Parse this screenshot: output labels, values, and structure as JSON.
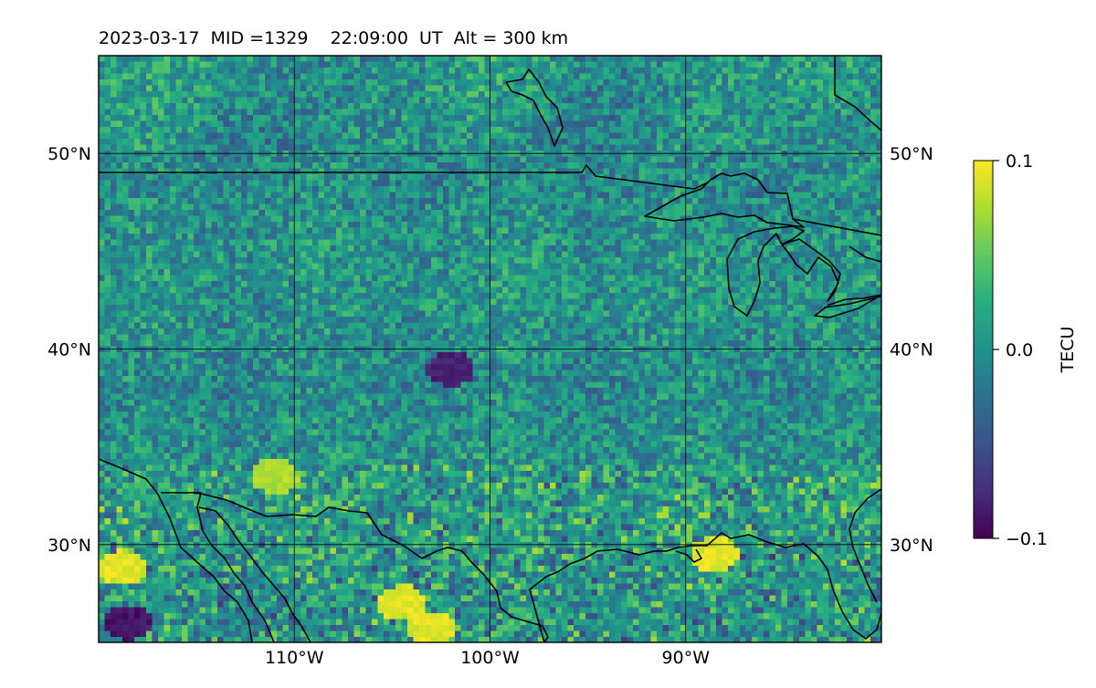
{
  "title": "2023-03-17  MID =1329    22:09:00  UT  Alt = 300 km",
  "map": {
    "lon_range": [
      -120,
      -80
    ],
    "lat_range": [
      25,
      55
    ],
    "lon_ticks": [
      {
        "value": -110,
        "label": "110°W"
      },
      {
        "value": -100,
        "label": "100°W"
      },
      {
        "value": -90,
        "label": "90°W"
      }
    ],
    "lat_ticks": [
      {
        "value": 50,
        "label": "50°N"
      },
      {
        "value": 40,
        "label": "40°N"
      },
      {
        "value": 30,
        "label": "30°N"
      }
    ],
    "grid": true,
    "coastlines": true,
    "field_colormap": "viridis"
  },
  "colorbar": {
    "label": "TECU",
    "range": [
      -0.1,
      0.1
    ],
    "ticks": [
      {
        "value": 0.1,
        "label": "0.1"
      },
      {
        "value": 0.0,
        "label": "0.0"
      },
      {
        "value": -0.1,
        "label": "−0.1"
      }
    ]
  },
  "chart_data": {
    "type": "heatmap",
    "title": "2023-03-17  MID =1329    22:09:00  UT  Alt = 300 km",
    "xlabel": "",
    "ylabel": "",
    "colorbar_label": "TECU",
    "zlim": [
      -0.1,
      0.1
    ],
    "xlim": [
      -120,
      -80
    ],
    "ylim": [
      25,
      55
    ],
    "features": [
      {
        "lon": -118.5,
        "lat": 26.0,
        "value": -0.1
      },
      {
        "lon": -118.8,
        "lat": 28.8,
        "value": 0.1
      },
      {
        "lon": -104.5,
        "lat": 27.0,
        "value": 0.1
      },
      {
        "lon": -103.0,
        "lat": 25.7,
        "value": 0.1
      },
      {
        "lon": -111.0,
        "lat": 33.5,
        "value": 0.08
      },
      {
        "lon": -88.5,
        "lat": 29.5,
        "value": 0.1
      },
      {
        "lon": -102.0,
        "lat": 39.0,
        "value": -0.09
      }
    ]
  }
}
